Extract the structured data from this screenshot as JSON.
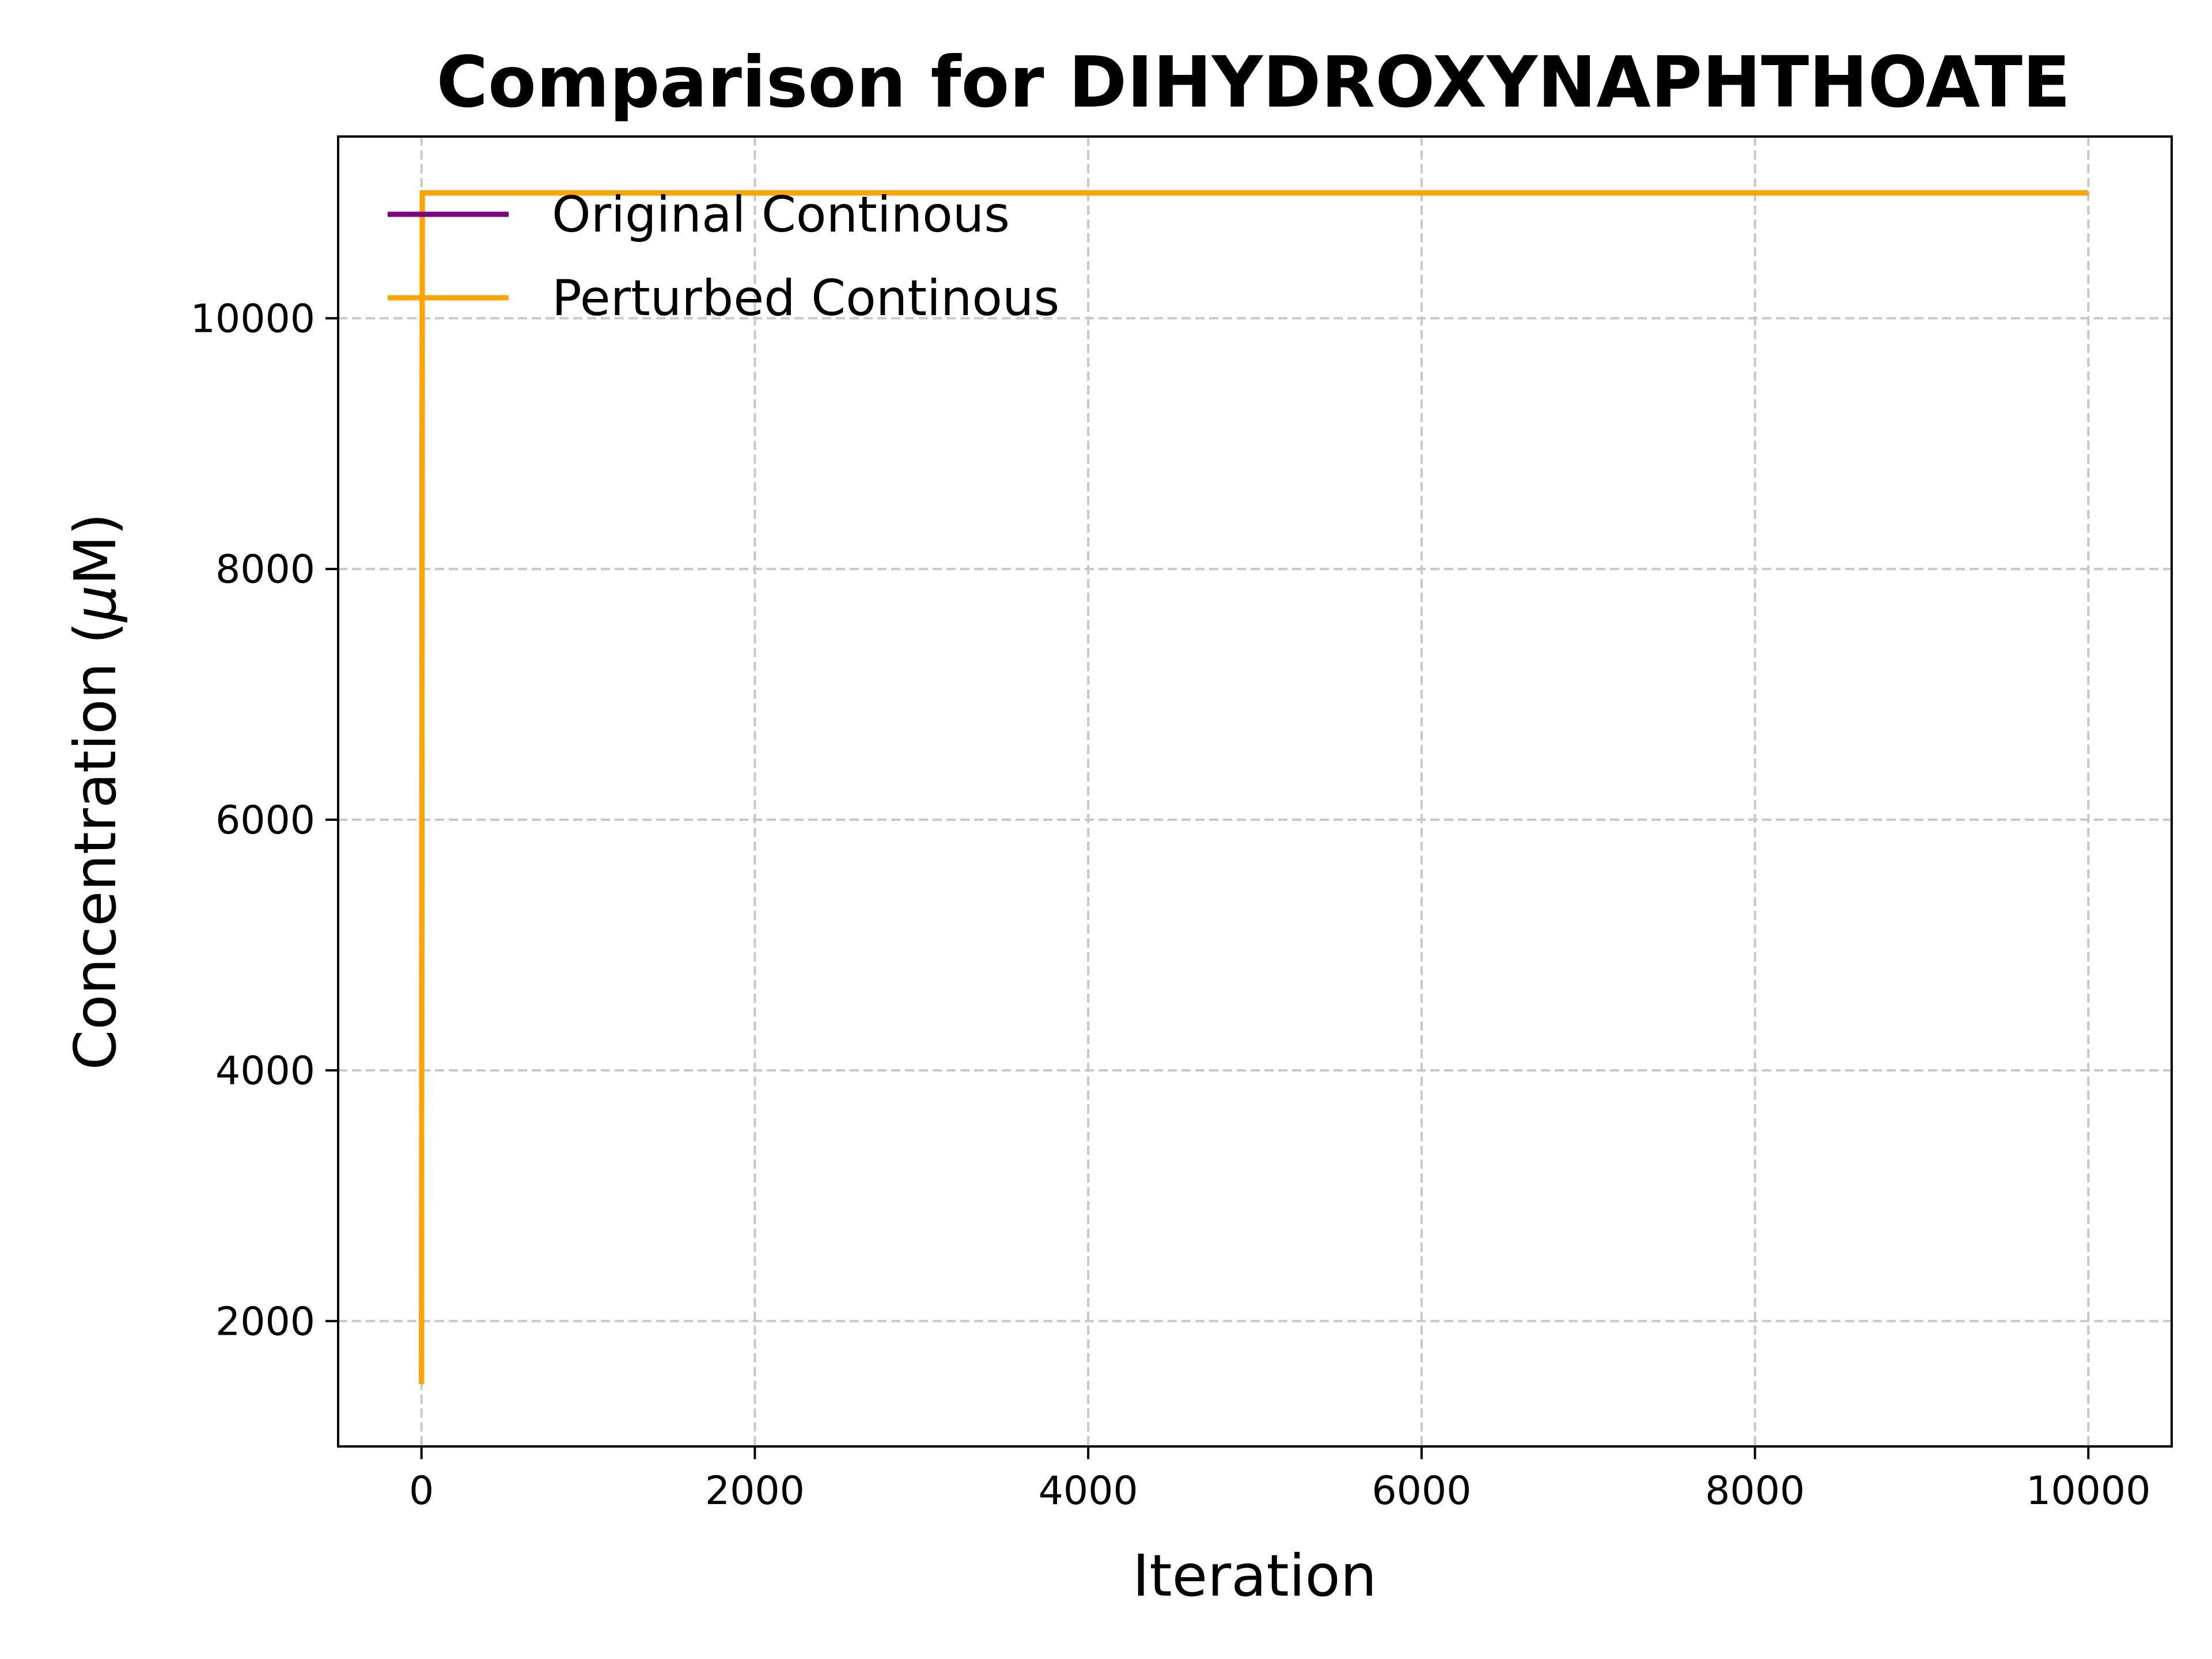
{
  "chart_data": {
    "type": "line",
    "title": "Comparison for DIHYDROXYNAPHTHOATE",
    "xlabel": "Iteration",
    "ylabel_text": "Concentration (",
    "ylabel_symbol": "μ",
    "ylabel_unit": "M)",
    "xlim": [
      -500,
      10500
    ],
    "ylim": [
      1000,
      11450
    ],
    "xticks": [
      0,
      2000,
      4000,
      6000,
      8000,
      10000
    ],
    "xtick_labels": [
      "0",
      "2000",
      "4000",
      "6000",
      "8000",
      "10000"
    ],
    "yticks": [
      2000,
      4000,
      6000,
      8000,
      10000
    ],
    "ytick_labels": [
      "2000",
      "4000",
      "6000",
      "8000",
      "10000"
    ],
    "grid": true,
    "legend_position": "upper-left",
    "series": [
      {
        "name": "Original Continous",
        "color": "#800080",
        "x": [
          0,
          5,
          10,
          20,
          50,
          100,
          500,
          1000,
          5000,
          10000
        ],
        "y": [
          1500,
          11000,
          11000,
          11000,
          11000,
          11000,
          11000,
          11000,
          11000,
          11000
        ]
      },
      {
        "name": "Perturbed Continous",
        "color": "#FFA500",
        "x": [
          0,
          5,
          10,
          20,
          50,
          100,
          500,
          1000,
          5000,
          10000
        ],
        "y": [
          1500,
          11000,
          11000,
          11000,
          11000,
          11000,
          11000,
          11000,
          11000,
          11000
        ]
      }
    ]
  }
}
